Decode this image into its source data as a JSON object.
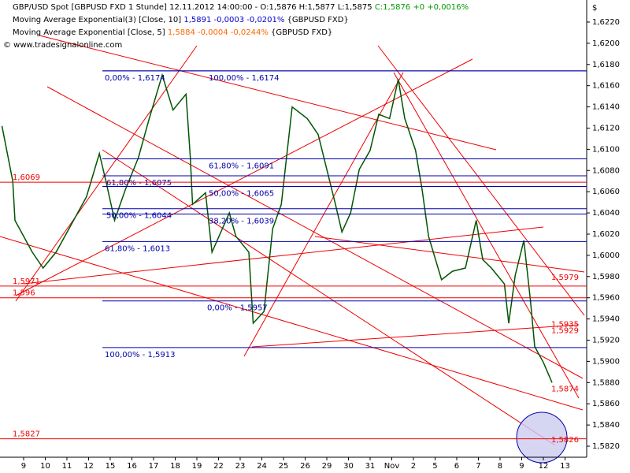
{
  "chart_data": {
    "type": "line",
    "title": "GBP/USD Spot [GBPUSD FXD  1 Stunde] 12.11.2012 14:00:00 - O:1,5876 H:1,5877 L:1,5875 ",
    "title_change": "C:1,5876 +0 +0,0016%",
    "indicators": [
      {
        "name": "Moving Average Exponential(3) [Close, 10] ",
        "reading": "1,5891 -0,0003 -0,0201%",
        "source": " {GBPUSD FXD}",
        "color": "#0000cc"
      },
      {
        "name": "Moving Average Exponential [Close, 5] ",
        "reading": "1,5884 -0,0004 -0,0244%",
        "source": " {GBPUSD FXD}",
        "color": "#ff6600"
      }
    ],
    "watermark": "© www.tradesignalonline.com",
    "y_axis_label": "$",
    "series": [
      {
        "name": "GBP/USD",
        "color": "#005500",
        "x": [
          -1.0,
          -0.5,
          -0.4,
          0.4,
          0.9,
          1.5,
          2.2,
          2.9,
          3.5,
          3.8,
          4.2,
          4.7,
          5.3,
          5.8,
          6.4,
          6.9,
          7.5,
          7.7,
          7.8,
          8.4,
          8.7,
          9.5,
          9.8,
          10.4,
          10.6,
          11.1,
          11.5,
          11.9,
          12.4,
          13.1,
          13.6,
          14.0,
          14.4,
          14.7,
          15.1,
          15.5,
          16.0,
          16.4,
          16.9,
          17.3,
          17.6,
          18.1,
          18.4,
          18.7,
          19.3,
          19.8,
          20.4,
          20.9,
          21.2,
          21.6,
          22.2,
          22.4,
          22.7,
          23.1,
          23.4,
          23.6,
          24.0,
          24.4
        ],
        "values": [
          1.6122,
          1.607,
          1.6033,
          1.6003,
          1.5988,
          1.6003,
          1.6029,
          1.6055,
          1.6096,
          1.607,
          1.6033,
          1.6062,
          1.6092,
          1.6129,
          1.617,
          1.6137,
          1.6152,
          1.6092,
          1.6048,
          1.6059,
          1.6003,
          1.604,
          1.6018,
          1.6003,
          1.5936,
          1.5947,
          1.6025,
          1.6048,
          1.614,
          1.6129,
          1.6114,
          1.6081,
          1.6048,
          1.6022,
          1.604,
          1.6081,
          1.6099,
          1.6133,
          1.6129,
          1.6166,
          1.6129,
          1.6099,
          1.6062,
          1.6018,
          1.5977,
          1.5985,
          1.5988,
          1.6033,
          1.5996,
          1.5988,
          1.5973,
          1.5936,
          1.5981,
          1.6014,
          1.5958,
          1.5914,
          1.5899,
          1.588
        ]
      }
    ],
    "fib_levels": [
      {
        "label": "0,00% - 1,6174",
        "value": 1.6174
      },
      {
        "label": "100,00% - 1,6174",
        "value": 1.6174
      },
      {
        "label": "61,80% - 1,6091",
        "value": 1.6091
      },
      {
        "label": "61,80% - 1,6075",
        "value": 1.6075
      },
      {
        "label": "50,00% - 1,6065",
        "value": 1.6065
      },
      {
        "label": "50,00% - 1,6044",
        "value": 1.6044
      },
      {
        "label": "38,20% - 1,6039",
        "value": 1.6039
      },
      {
        "label": "61,80% - 1,6013",
        "value": 1.6013
      },
      {
        "label": "0,00% - 1,5957",
        "value": 1.5957
      },
      {
        "label": "100,00% - 1,5913",
        "value": 1.5913
      }
    ],
    "fib_color": "#0000aa",
    "levels": [
      {
        "label": "1,6069",
        "value": 1.6069
      },
      {
        "label": "1,5971",
        "value": 1.5971
      },
      {
        "label": "1,596",
        "value": 1.596
      },
      {
        "label": "1,5827",
        "value": 1.5827
      }
    ],
    "trend_labels": [
      {
        "label": "1,5979",
        "value": 1.5979
      },
      {
        "label": "1,5935",
        "value": 1.5935
      },
      {
        "label": "1,5929",
        "value": 1.5929
      },
      {
        "label": "1,5874",
        "value": 1.5874
      },
      {
        "label": "1,5826",
        "value": 1.5826
      }
    ],
    "level_color": "#ee0000",
    "xlim": [
      -1.09,
      26.0
    ],
    "xticks": [
      {
        "value": 0,
        "label": "9"
      },
      {
        "value": 1,
        "label": "10"
      },
      {
        "value": 2,
        "label": "11"
      },
      {
        "value": 3,
        "label": "12"
      },
      {
        "value": 4,
        "label": "15"
      },
      {
        "value": 5,
        "label": "16"
      },
      {
        "value": 6,
        "label": "17"
      },
      {
        "value": 7,
        "label": "18"
      },
      {
        "value": 8,
        "label": "19"
      },
      {
        "value": 9,
        "label": "22"
      },
      {
        "value": 10,
        "label": "23"
      },
      {
        "value": 11,
        "label": "24"
      },
      {
        "value": 12,
        "label": "25"
      },
      {
        "value": 13,
        "label": "26"
      },
      {
        "value": 14,
        "label": "29"
      },
      {
        "value": 15,
        "label": "30"
      },
      {
        "value": 16,
        "label": "31"
      },
      {
        "value": 17,
        "label": "Nov"
      },
      {
        "value": 18,
        "label": "2"
      },
      {
        "value": 19,
        "label": "5"
      },
      {
        "value": 20,
        "label": "6"
      },
      {
        "value": 21,
        "label": "7"
      },
      {
        "value": 22,
        "label": "8"
      },
      {
        "value": 23,
        "label": "9"
      },
      {
        "value": 24,
        "label": "12"
      },
      {
        "value": 25,
        "label": "13"
      }
    ],
    "ylim": [
      1.58096,
      1.62408
    ],
    "yticks": [
      {
        "value": 1.582,
        "label": "1,5820"
      },
      {
        "value": 1.584,
        "label": "1,5840"
      },
      {
        "value": 1.586,
        "label": "1,5860"
      },
      {
        "value": 1.588,
        "label": "1,5880"
      },
      {
        "value": 1.59,
        "label": "1,5900"
      },
      {
        "value": 1.592,
        "label": "1,5920"
      },
      {
        "value": 1.594,
        "label": "1,5940"
      },
      {
        "value": 1.596,
        "label": "1,5960"
      },
      {
        "value": 1.598,
        "label": "1,5980"
      },
      {
        "value": 1.6,
        "label": "1,6000"
      },
      {
        "value": 1.602,
        "label": "1,6020"
      },
      {
        "value": 1.604,
        "label": "1,6040"
      },
      {
        "value": 1.606,
        "label": "1,6060"
      },
      {
        "value": 1.608,
        "label": "1,6080"
      },
      {
        "value": 1.61,
        "label": "1,6100"
      },
      {
        "value": 1.612,
        "label": "1,6120"
      },
      {
        "value": 1.614,
        "label": "1,6140"
      },
      {
        "value": 1.616,
        "label": "1,6160"
      },
      {
        "value": 1.618,
        "label": "1,6180"
      },
      {
        "value": 1.62,
        "label": "1,6200"
      },
      {
        "value": 1.622,
        "label": "1,6220"
      }
    ]
  }
}
